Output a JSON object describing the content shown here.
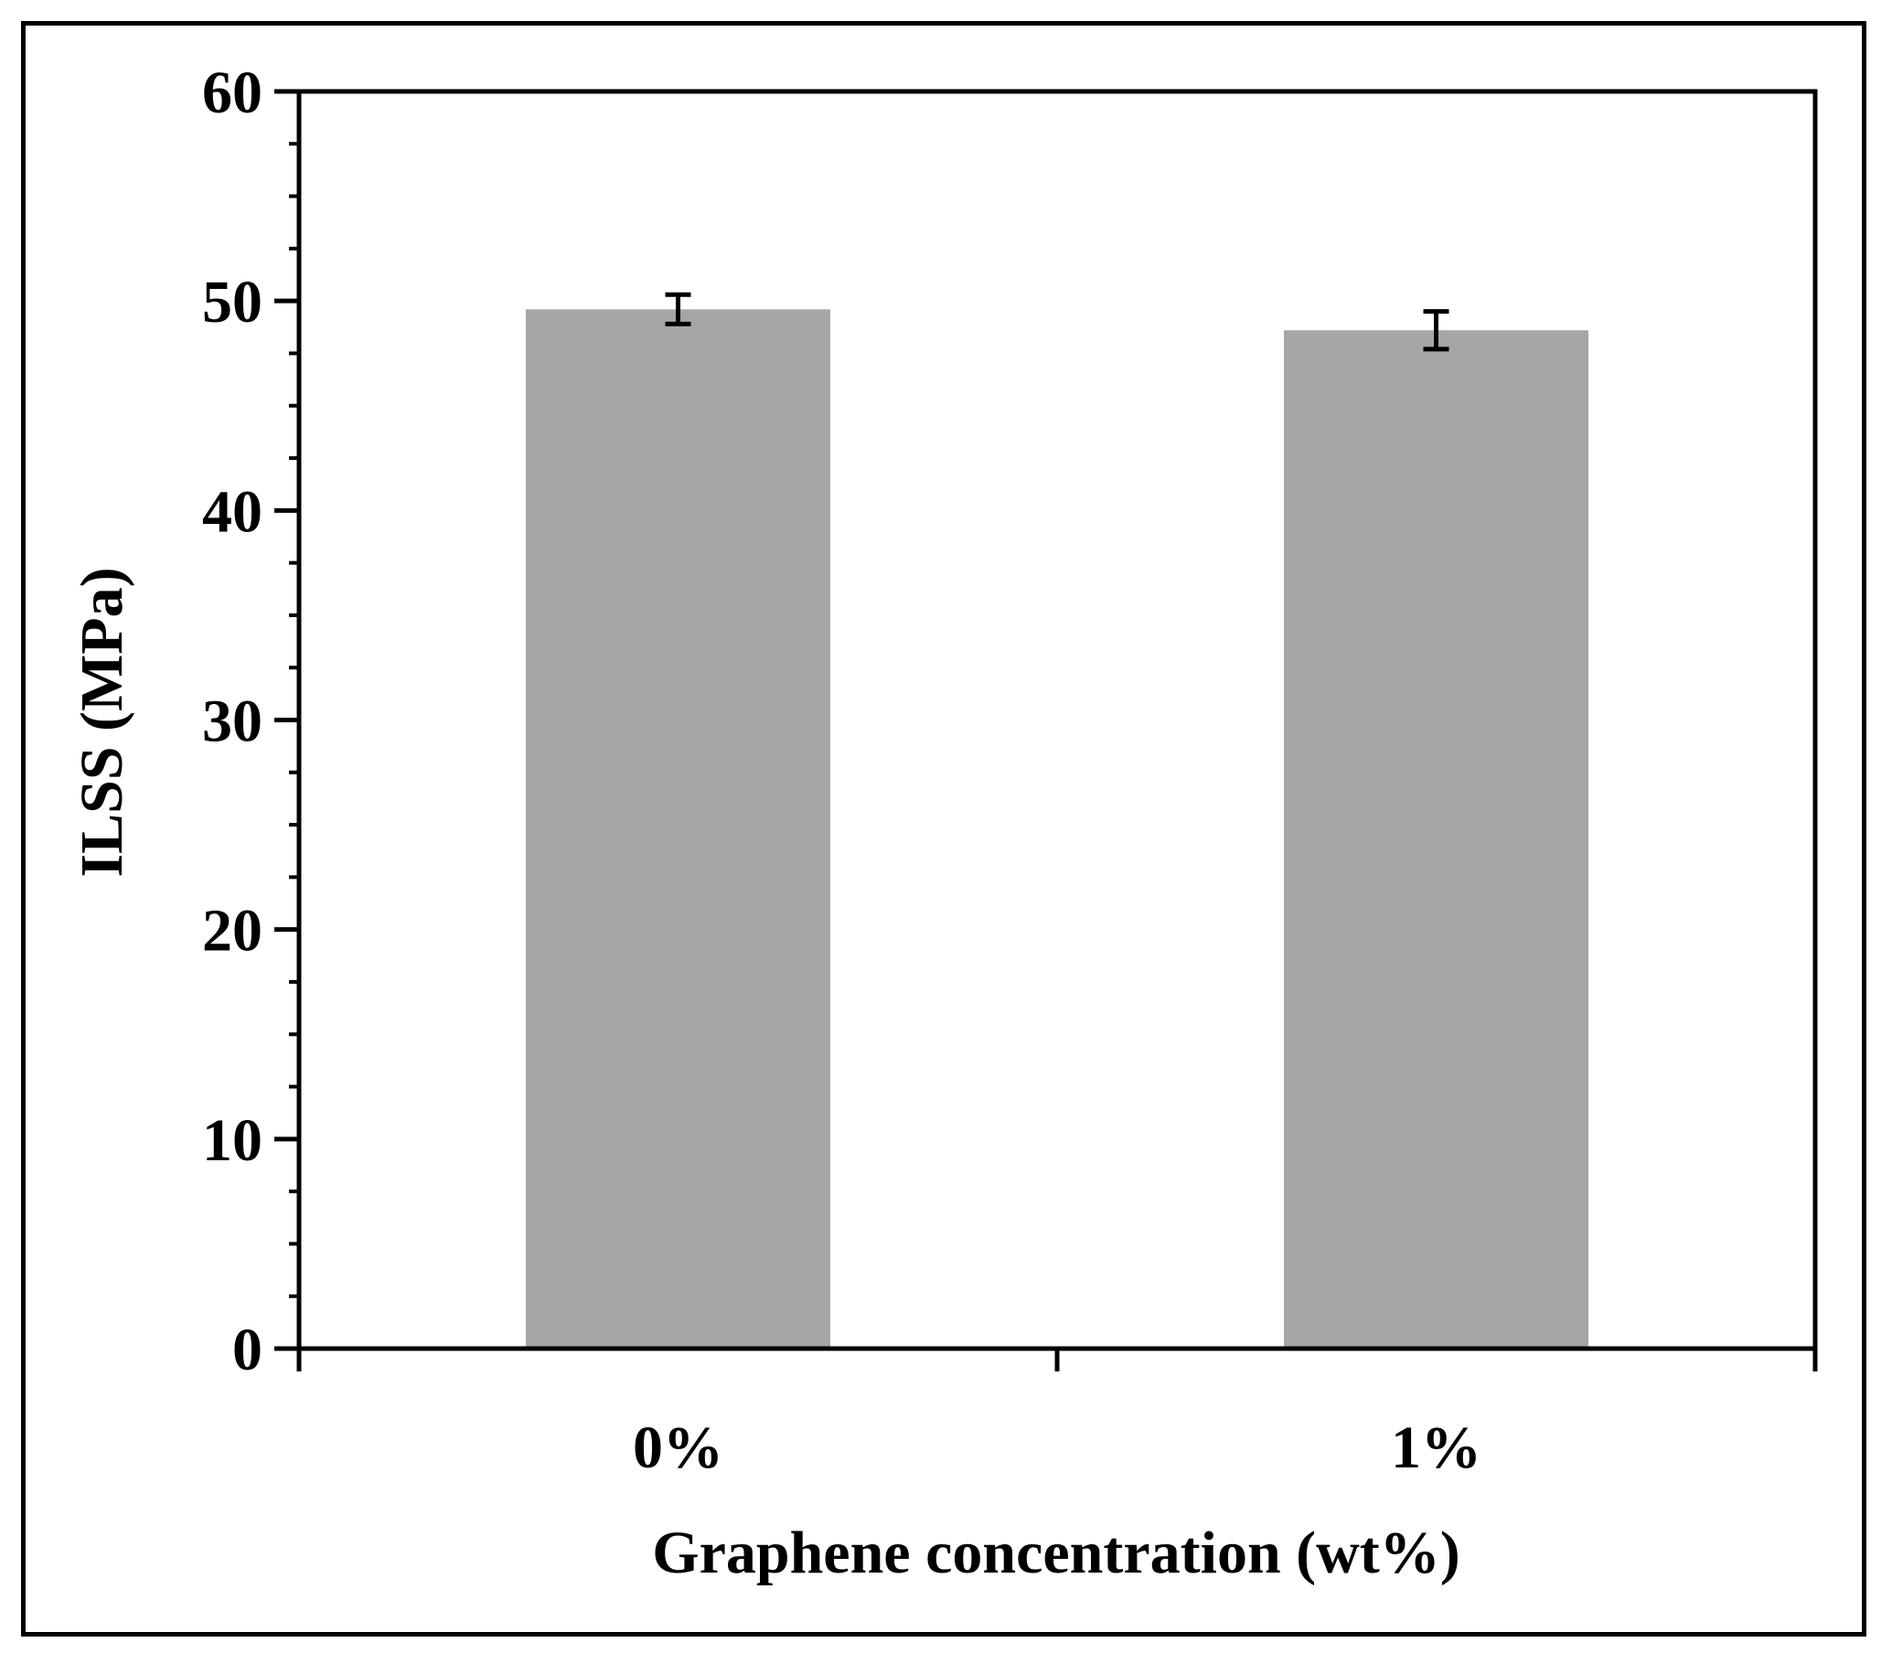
{
  "chart_data": {
    "type": "bar",
    "categories": [
      "0%",
      "1%"
    ],
    "series": [
      {
        "values": [
          49.6,
          48.6
        ],
        "error": [
          0.7,
          0.9
        ],
        "color": "#a6a6a6"
      }
    ],
    "xlabel": "Graphene concentration (wt%)",
    "ylabel": "ILSS (MPa)",
    "ylim": [
      0,
      60
    ],
    "yticks": [
      "0",
      "10",
      "20",
      "30",
      "40",
      "50",
      "60"
    ],
    "ytick_values": [
      0,
      10,
      20,
      30,
      40,
      50,
      60
    ],
    "minor_tick_step": 2.5,
    "grid": false,
    "legend": "none"
  }
}
